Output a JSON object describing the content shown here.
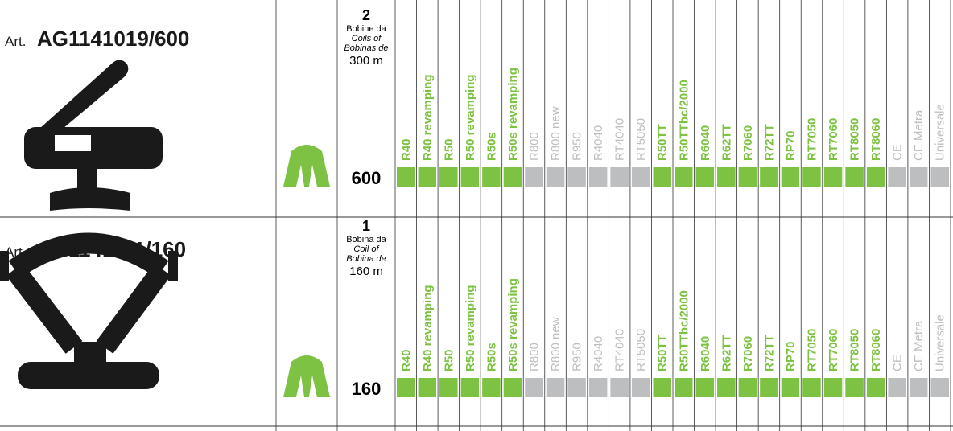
{
  "products": [
    {
      "name": "R40",
      "color": "#7dc242"
    },
    {
      "name": "R40 revamping",
      "color": "#7dc242"
    },
    {
      "name": "R50",
      "color": "#7dc242"
    },
    {
      "name": "R50 revamping",
      "color": "#7dc242"
    },
    {
      "name": "R50s",
      "color": "#7dc242"
    },
    {
      "name": "R50s revamping",
      "color": "#7dc242"
    },
    {
      "name": "R800",
      "color": "#bcbec0"
    },
    {
      "name": "R800 new",
      "color": "#bcbec0"
    },
    {
      "name": "R950",
      "color": "#bcbec0"
    },
    {
      "name": "R4040",
      "color": "#bcbec0"
    },
    {
      "name": "RT4040",
      "color": "#bcbec0"
    },
    {
      "name": "RT5050",
      "color": "#bcbec0"
    },
    {
      "name": "R50TT",
      "color": "#7dc242"
    },
    {
      "name": "R50TTbc/2000",
      "color": "#7dc242"
    },
    {
      "name": "R6040",
      "color": "#7dc242"
    },
    {
      "name": "R62TT",
      "color": "#7dc242"
    },
    {
      "name": "R7060",
      "color": "#7dc242"
    },
    {
      "name": "R72TT",
      "color": "#7dc242"
    },
    {
      "name": "RP70",
      "color": "#7dc242"
    },
    {
      "name": "RT7050",
      "color": "#7dc242"
    },
    {
      "name": "RT7060",
      "color": "#7dc242"
    },
    {
      "name": "RT8050",
      "color": "#7dc242"
    },
    {
      "name": "RT8060",
      "color": "#7dc242"
    },
    {
      "name": "CE",
      "color": "#bcbec0"
    },
    {
      "name": "CE Metra",
      "color": "#bcbec0"
    },
    {
      "name": "Universale",
      "color": "#bcbec0"
    }
  ],
  "rows": [
    {
      "art": "Art.",
      "code": "AG1141019/600",
      "count": "2",
      "unit_it": "Bobine da",
      "unit_en": "Coils of",
      "unit_es": "Bobinas de",
      "length": "300 m",
      "quantity": "600"
    },
    {
      "art": "Art.",
      "code": "AG1141111/160",
      "count": "1",
      "unit_it": "Bobina da",
      "unit_en": "Coil of",
      "unit_es": "Bobina de",
      "length": "160 m",
      "quantity": "160"
    }
  ]
}
